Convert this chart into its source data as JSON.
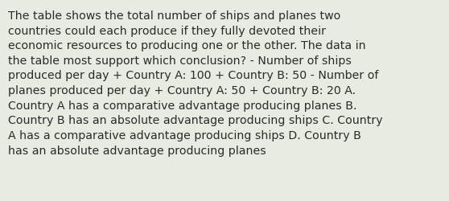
{
  "text": "The table shows the total number of ships and planes two\ncountries could each produce if they fully devoted their\neconomic resources to producing one or the other. The data in\nthe table most support which conclusion? - Number of ships\nproduced per day + Country A: 100 + Country B: 50 - Number of\nplanes produced per day + Country A: 50 + Country B: 20 A.\nCountry A has a comparative advantage producing planes B.\nCountry B has an absolute advantage producing ships C. Country\nA has a comparative advantage producing ships D. Country B\nhas an absolute advantage producing planes",
  "background_color": "#e8ebe2",
  "text_color": "#2b2b2b",
  "font_size": 10.2,
  "fig_width": 5.58,
  "fig_height": 2.51,
  "dpi": 100
}
